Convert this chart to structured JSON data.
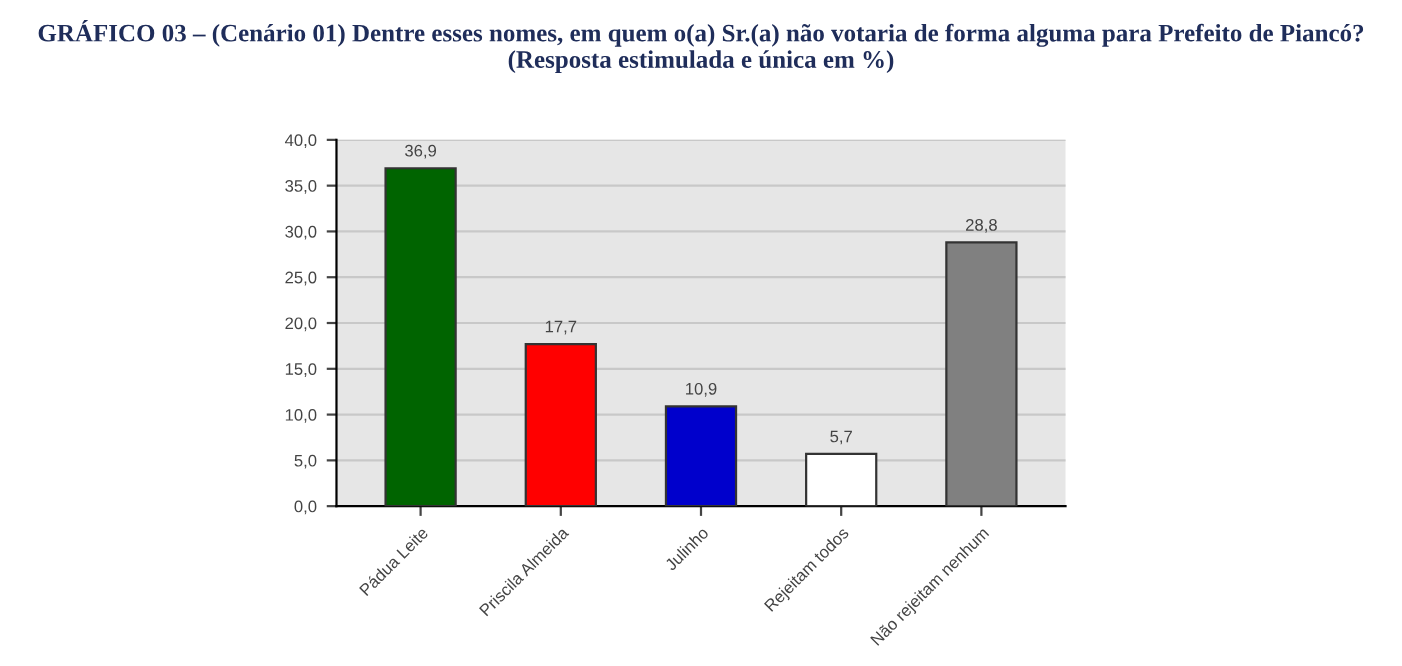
{
  "chart_data": {
    "type": "bar",
    "title": "GRÁFICO 03 – (Cenário 01) Dentre esses nomes, em quem o(a) Sr.(a) não votaria de forma alguma para Prefeito de Piancó? (Resposta estimulada e única em %)",
    "categories": [
      "Pádua Leite",
      "Priscila Almeida",
      "Julinho",
      "Rejeitam todos",
      "Não rejeitam nenhum"
    ],
    "values": [
      36.9,
      17.7,
      10.9,
      5.7,
      28.8
    ],
    "colors": [
      "#006400",
      "#ff0000",
      "#0000cc",
      "#ffffff",
      "#808080"
    ],
    "value_labels": [
      "36,9",
      "17,7",
      "10,9",
      "5,7",
      "28,8"
    ],
    "ylim": [
      0,
      40
    ],
    "yticks": [
      {
        "value": 0,
        "label": "0,0"
      },
      {
        "value": 5,
        "label": "5,0"
      },
      {
        "value": 10,
        "label": "10,0"
      },
      {
        "value": 15,
        "label": "15,0"
      },
      {
        "value": 20,
        "label": "20,0"
      },
      {
        "value": 25,
        "label": "25,0"
      },
      {
        "value": 30,
        "label": "30,0"
      },
      {
        "value": 35,
        "label": "35,0"
      },
      {
        "value": 40,
        "label": "40,0"
      }
    ],
    "grid": "y"
  }
}
